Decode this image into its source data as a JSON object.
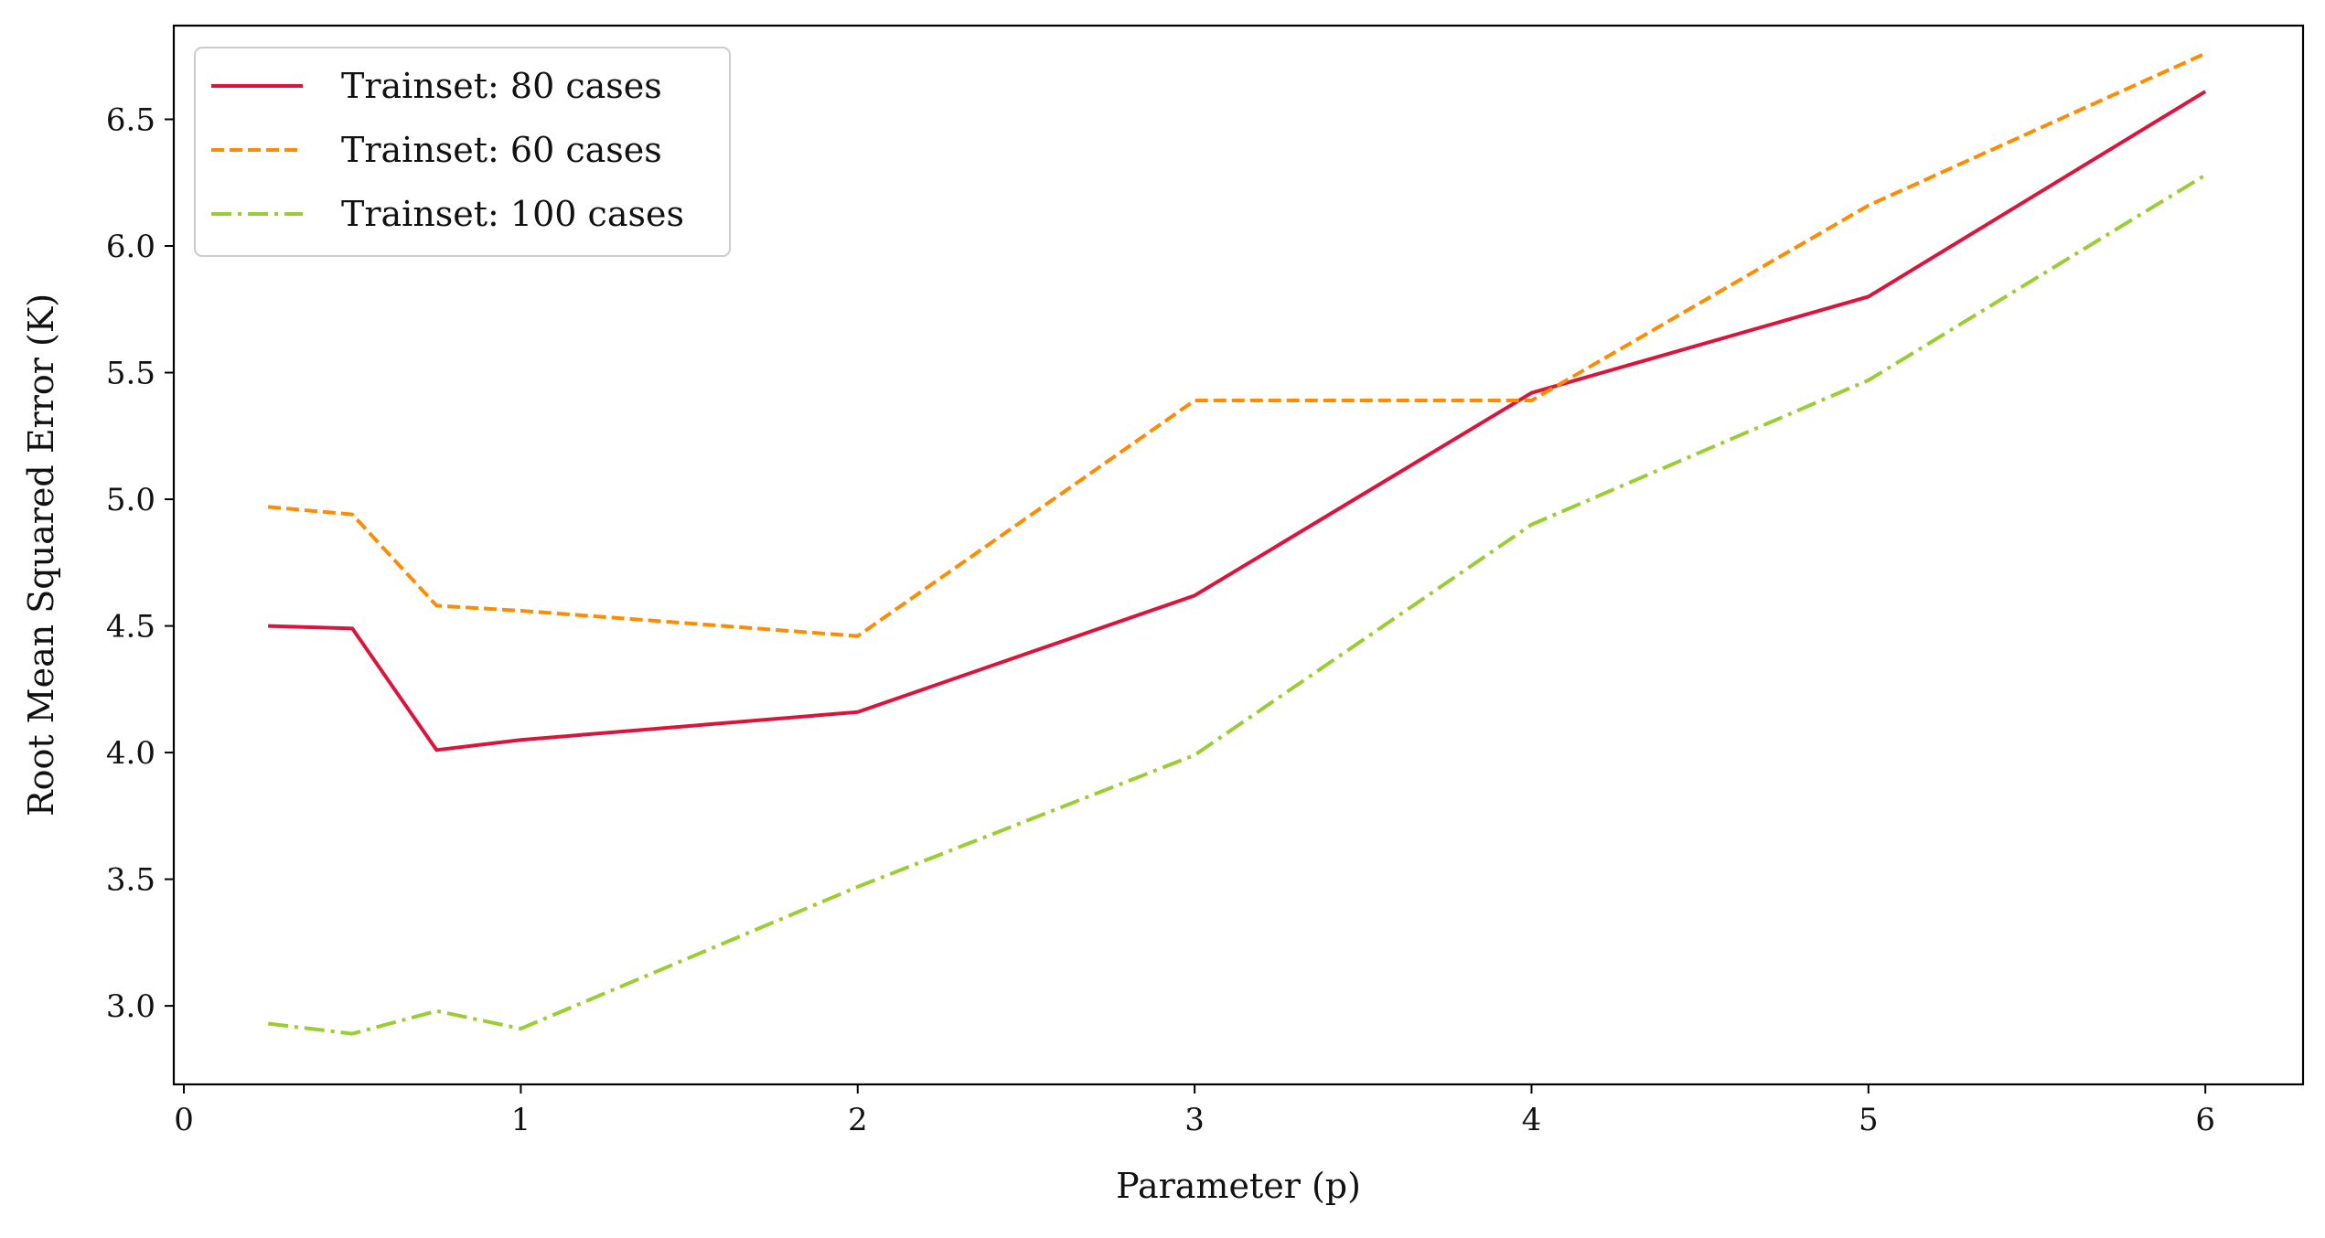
{
  "chart_data": {
    "type": "line",
    "title": "",
    "xlabel": "Parameter (p)",
    "ylabel": "Root Mean Squared Error (K)",
    "xlim": [
      -0.03,
      6.29
    ],
    "ylim": [
      2.69,
      6.87
    ],
    "xticks": [
      0,
      1,
      2,
      3,
      4,
      5,
      6
    ],
    "xtick_labels": [
      "0",
      "1",
      "2",
      "3",
      "4",
      "5",
      "6"
    ],
    "yticks": [
      3.0,
      3.5,
      4.0,
      4.5,
      5.0,
      5.5,
      6.0,
      6.5
    ],
    "ytick_labels": [
      "3.0",
      "3.5",
      "4.0",
      "4.5",
      "5.0",
      "5.5",
      "6.0",
      "6.5"
    ],
    "grid": false,
    "legend_position": "top-left",
    "series": [
      {
        "name": "Trainset: 80 cases",
        "color": "#DC143C",
        "line_style": "solid",
        "x": [
          0.25,
          0.5,
          0.75,
          1,
          2,
          3,
          4,
          5,
          6
        ],
        "y": [
          4.5,
          4.49,
          4.01,
          4.05,
          4.16,
          4.62,
          5.42,
          5.8,
          6.61
        ]
      },
      {
        "name": "Trainset: 60 cases",
        "color": "#FF8C00",
        "line_style": "dashed",
        "x": [
          0.25,
          0.5,
          0.75,
          1,
          2,
          3,
          4,
          5,
          6
        ],
        "y": [
          4.97,
          4.94,
          4.58,
          4.56,
          4.46,
          5.39,
          5.39,
          6.16,
          6.76
        ]
      },
      {
        "name": "Trainset: 100 cases",
        "color": "#9ACD32",
        "line_style": "dashdot",
        "x": [
          0.25,
          0.5,
          0.75,
          1,
          2,
          3,
          4,
          5,
          6
        ],
        "y": [
          2.93,
          2.89,
          2.98,
          2.91,
          3.47,
          3.99,
          4.9,
          5.47,
          6.28
        ]
      }
    ]
  }
}
